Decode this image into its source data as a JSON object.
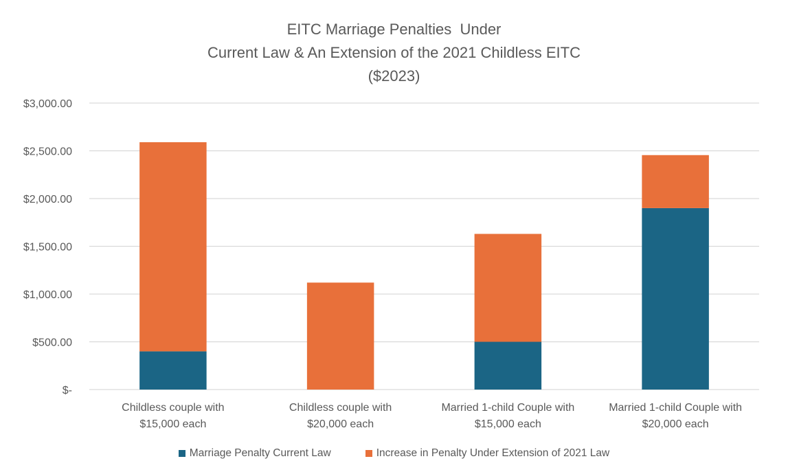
{
  "chart_data": {
    "type": "bar",
    "stacked": true,
    "title_lines": [
      "EITC Marriage Penalties  Under",
      "Current Law & An Extension of the 2021 Childless EITC",
      "($2023)"
    ],
    "categories": [
      [
        "Childless couple with",
        "$15,000 each"
      ],
      [
        "Childless couple with",
        "$20,000 each"
      ],
      [
        "Married 1-child Couple with",
        "$15,000 each"
      ],
      [
        "Married 1-child Couple with",
        "$20,000 each"
      ]
    ],
    "series": [
      {
        "name": "Marriage Penalty Current Law",
        "color": "#1B6585",
        "values": [
          400,
          0,
          500,
          1900
        ]
      },
      {
        "name": "Increase in Penalty Under Extension of 2021 Law",
        "color": "#E8703A",
        "values": [
          2190,
          1120,
          1130,
          555
        ]
      }
    ],
    "ylim": [
      0,
      3000
    ],
    "yticks": [
      {
        "value": 0,
        "label": "$-"
      },
      {
        "value": 500,
        "label": "$500.00"
      },
      {
        "value": 1000,
        "label": "$1,000.00"
      },
      {
        "value": 1500,
        "label": "$1,500.00"
      },
      {
        "value": 2000,
        "label": "$2,000.00"
      },
      {
        "value": 2500,
        "label": "$2,500.00"
      },
      {
        "value": 3000,
        "label": "$3,000.00"
      }
    ],
    "grid": true,
    "legend_position": "bottom"
  }
}
